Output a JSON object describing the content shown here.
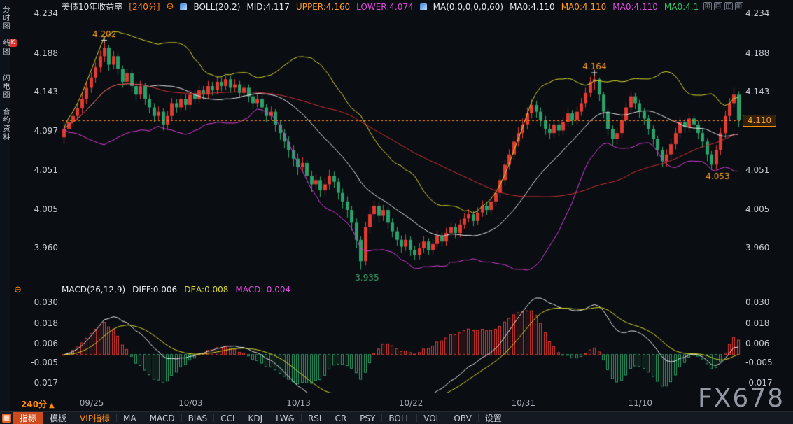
{
  "watermark": {
    "text": "FX678"
  },
  "header": {
    "symbol": "美债10年收益率",
    "period_tag": "[240分]",
    "collapse_glyph": "⊖",
    "boll_label": "BOLL(20,2)",
    "boll_mid": "MID:4.117",
    "boll_upper": "UPPER:4.160",
    "boll_lower": "LOWER:4.074",
    "ma_label": "MA(0,0,0,0,0,60)",
    "ma_values": [
      "MA0:4.110",
      "MA0:4.110",
      "MA0:4.110",
      "MA0:4.1"
    ],
    "layout_icons": [
      {
        "name": "layout-single-icon",
        "glyph": "⊞"
      },
      {
        "name": "layout-split-horizontal-icon",
        "glyph": "⊟"
      },
      {
        "name": "layout-split-vertical-icon",
        "glyph": "◫"
      },
      {
        "name": "layout-quad-icon",
        "glyph": "⊞"
      }
    ]
  },
  "sidebar": {
    "tabs": [
      {
        "label": "分时图",
        "active": false
      },
      {
        "badge": "K",
        "label": "线图",
        "active": true
      },
      {
        "label": "闪电图",
        "active": false
      },
      {
        "label": "合约资料",
        "active": false
      }
    ]
  },
  "macd_header": {
    "collapse_glyph": "⊖",
    "label": "MACD(26,12,9)",
    "diff": "DIFF:0.006",
    "dea": "DEA:0.008",
    "macd": "MACD:-0.004"
  },
  "xaxis": {
    "period_label": "240分",
    "arrow": "▲"
  },
  "toolbar": {
    "grid_icon_glyph": "▦",
    "items": [
      {
        "id": "indicators",
        "label": "指标",
        "style": "active"
      },
      {
        "id": "templates",
        "label": "模板"
      },
      {
        "id": "vip-indicators",
        "label": "VIP指标",
        "style": "vip"
      },
      {
        "id": "ma",
        "label": "MA"
      },
      {
        "id": "macd",
        "label": "MACD"
      },
      {
        "id": "bias",
        "label": "BIAS"
      },
      {
        "id": "cci",
        "label": "CCI"
      },
      {
        "id": "kdj",
        "label": "KDJ"
      },
      {
        "id": "lwr",
        "label": "LW&"
      },
      {
        "id": "rsi",
        "label": "RSI"
      },
      {
        "id": "cr",
        "label": "CR"
      },
      {
        "id": "psy",
        "label": "PSY"
      },
      {
        "id": "boll",
        "label": "BOLL"
      },
      {
        "id": "vol",
        "label": "VOL"
      },
      {
        "id": "obv",
        "label": "OBV"
      },
      {
        "id": "settings",
        "label": "设置"
      }
    ]
  },
  "colors": {
    "up": "#e23b30",
    "down": "#2aa06a",
    "boll_upper": "#d9d929",
    "boll_mid": "#e9e9e9",
    "boll_lower": "#dd3fdd",
    "ma60": "#cf3232",
    "accent": "#ff8a00",
    "dea": "#d9d929",
    "diff": "#e9e9e9"
  },
  "chart_data": {
    "type": "candlestick",
    "title": "美债10年收益率 240分 K线 + BOLL(20,2) + MA60 + MACD(26,12,9)",
    "price_axis": {
      "top": 4.236,
      "bottom": 3.9215,
      "ticks": [
        4.234,
        4.188,
        4.143,
        4.097,
        4.051,
        4.005,
        3.96
      ],
      "right_ticks": [
        4.234,
        4.188,
        4.143,
        4.051,
        4.005,
        3.96
      ]
    },
    "macd_axis": {
      "top": 0.0345,
      "bottom": -0.0225,
      "ticks": [
        0.03,
        0.018,
        0.006,
        -0.005,
        -0.017
      ]
    },
    "current_price": 4.11,
    "current_price_label": "4.110",
    "overlays": {
      "boll": {
        "period": 20,
        "dev": 2
      },
      "ma_period": 60
    },
    "macd_params": {
      "fast": 12,
      "slow": 26,
      "signal": 9
    },
    "x_labels": [
      {
        "text": "09/25",
        "i": 6
      },
      {
        "text": "10/03",
        "i": 28
      },
      {
        "text": "10/13",
        "i": 52
      },
      {
        "text": "10/22",
        "i": 77
      },
      {
        "text": "10/31",
        "i": 102
      },
      {
        "text": "11/10",
        "i": 128
      }
    ],
    "annotations": [
      {
        "i": 9,
        "text": "4.202",
        "color": "#ffa21e",
        "pos": "above",
        "cross": true
      },
      {
        "i": 66,
        "text": "3.935",
        "color": "#3fae6e",
        "pos": "below",
        "cross": false
      },
      {
        "i": 118,
        "text": "4.164",
        "color": "#ffa21e",
        "pos": "above",
        "cross": true
      },
      {
        "i": 144,
        "text": "4.053",
        "color": "#ffa21e",
        "pos": "below",
        "cross": false
      }
    ],
    "candles": [
      [
        4.09,
        4.108,
        4.082,
        4.1
      ],
      [
        4.1,
        4.113,
        4.094,
        4.108
      ],
      [
        4.108,
        4.121,
        4.103,
        4.115
      ],
      [
        4.115,
        4.13,
        4.11,
        4.124
      ],
      [
        4.124,
        4.142,
        4.118,
        4.135
      ],
      [
        4.135,
        4.154,
        4.129,
        4.148
      ],
      [
        4.148,
        4.166,
        4.142,
        4.16
      ],
      [
        4.16,
        4.178,
        4.154,
        4.172
      ],
      [
        4.172,
        4.192,
        4.166,
        4.185
      ],
      [
        4.185,
        4.202,
        4.178,
        4.195
      ],
      [
        4.195,
        4.198,
        4.168,
        4.175
      ],
      [
        4.175,
        4.191,
        4.17,
        4.185
      ],
      [
        4.185,
        4.189,
        4.163,
        4.17
      ],
      [
        4.17,
        4.174,
        4.148,
        4.155
      ],
      [
        4.155,
        4.171,
        4.15,
        4.165
      ],
      [
        4.165,
        4.169,
        4.143,
        4.15
      ],
      [
        4.15,
        4.155,
        4.133,
        4.14
      ],
      [
        4.14,
        4.156,
        4.135,
        4.15
      ],
      [
        4.15,
        4.154,
        4.128,
        4.135
      ],
      [
        4.135,
        4.14,
        4.118,
        4.125
      ],
      [
        4.125,
        4.13,
        4.108,
        4.115
      ],
      [
        4.115,
        4.126,
        4.11,
        4.12
      ],
      [
        4.12,
        4.124,
        4.098,
        4.105
      ],
      [
        4.105,
        4.121,
        4.1,
        4.115
      ],
      [
        4.115,
        4.136,
        4.11,
        4.13
      ],
      [
        4.13,
        4.135,
        4.119,
        4.125
      ],
      [
        4.125,
        4.141,
        4.12,
        4.135
      ],
      [
        4.135,
        4.14,
        4.122,
        4.128
      ],
      [
        4.128,
        4.146,
        4.123,
        4.14
      ],
      [
        4.14,
        4.145,
        4.129,
        4.135
      ],
      [
        4.135,
        4.151,
        4.13,
        4.145
      ],
      [
        4.145,
        4.15,
        4.134,
        4.14
      ],
      [
        4.14,
        4.156,
        4.135,
        4.15
      ],
      [
        4.15,
        4.155,
        4.139,
        4.145
      ],
      [
        4.145,
        4.161,
        4.14,
        4.155
      ],
      [
        4.155,
        4.16,
        4.144,
        4.15
      ],
      [
        4.15,
        4.162,
        4.145,
        4.158
      ],
      [
        4.158,
        4.162,
        4.142,
        4.148
      ],
      [
        4.148,
        4.158,
        4.143,
        4.152
      ],
      [
        4.152,
        4.156,
        4.136,
        4.142
      ],
      [
        4.142,
        4.153,
        4.137,
        4.148
      ],
      [
        4.148,
        4.152,
        4.131,
        4.138
      ],
      [
        4.138,
        4.142,
        4.123,
        4.13
      ],
      [
        4.13,
        4.141,
        4.125,
        4.135
      ],
      [
        4.135,
        4.139,
        4.118,
        4.125
      ],
      [
        4.125,
        4.129,
        4.108,
        4.115
      ],
      [
        4.115,
        4.126,
        4.11,
        4.12
      ],
      [
        4.12,
        4.123,
        4.097,
        4.105
      ],
      [
        4.105,
        4.11,
        4.087,
        4.095
      ],
      [
        4.095,
        4.1,
        4.077,
        4.085
      ],
      [
        4.085,
        4.091,
        4.066,
        4.075
      ],
      [
        4.075,
        4.081,
        4.056,
        4.065
      ],
      [
        4.065,
        4.071,
        4.046,
        4.055
      ],
      [
        4.055,
        4.067,
        4.049,
        4.06
      ],
      [
        4.06,
        4.064,
        4.037,
        4.045
      ],
      [
        4.045,
        4.051,
        4.026,
        4.035
      ],
      [
        4.035,
        4.047,
        4.029,
        4.04
      ],
      [
        4.04,
        4.044,
        4.02,
        4.028
      ],
      [
        4.028,
        4.042,
        4.022,
        4.035
      ],
      [
        4.035,
        4.052,
        4.029,
        4.045
      ],
      [
        4.045,
        4.05,
        4.031,
        4.038
      ],
      [
        4.038,
        4.042,
        4.017,
        4.025
      ],
      [
        4.025,
        4.03,
        4.007,
        4.015
      ],
      [
        4.015,
        4.021,
        3.996,
        4.005
      ],
      [
        4.005,
        4.01,
        3.981,
        3.99
      ],
      [
        3.99,
        3.995,
        3.96,
        3.97
      ],
      [
        3.97,
        3.974,
        3.935,
        3.945
      ],
      [
        3.945,
        3.991,
        3.94,
        3.985
      ],
      [
        3.985,
        4.007,
        3.978,
        4.0
      ],
      [
        4.0,
        4.016,
        3.994,
        4.01
      ],
      [
        4.01,
        4.014,
        3.991,
        3.998
      ],
      [
        3.998,
        4.011,
        3.992,
        4.005
      ],
      [
        4.005,
        4.009,
        3.983,
        3.99
      ],
      [
        3.99,
        3.995,
        3.973,
        3.98
      ],
      [
        3.98,
        3.985,
        3.963,
        3.97
      ],
      [
        3.97,
        3.975,
        3.955,
        3.962
      ],
      [
        3.962,
        3.976,
        3.957,
        3.97
      ],
      [
        3.97,
        3.974,
        3.951,
        3.958
      ],
      [
        3.958,
        3.963,
        3.946,
        3.952
      ],
      [
        3.952,
        3.966,
        3.947,
        3.96
      ],
      [
        3.96,
        3.974,
        3.955,
        3.968
      ],
      [
        3.968,
        3.972,
        3.952,
        3.958
      ],
      [
        3.958,
        3.971,
        3.953,
        3.965
      ],
      [
        3.965,
        3.981,
        3.96,
        3.975
      ],
      [
        3.975,
        3.979,
        3.962,
        3.968
      ],
      [
        3.968,
        3.984,
        3.963,
        3.978
      ],
      [
        3.978,
        3.991,
        3.973,
        3.985
      ],
      [
        3.985,
        3.989,
        3.972,
        3.978
      ],
      [
        3.978,
        3.994,
        3.973,
        3.988
      ],
      [
        3.988,
        4.001,
        3.983,
        3.995
      ],
      [
        3.995,
        4.006,
        3.99,
        4.0
      ],
      [
        4.0,
        4.004,
        3.986,
        3.992
      ],
      [
        3.992,
        4.008,
        3.987,
        4.002
      ],
      [
        4.002,
        4.016,
        3.997,
        4.01
      ],
      [
        4.01,
        4.015,
        3.999,
        4.005
      ],
      [
        4.005,
        4.021,
        4.0,
        4.015
      ],
      [
        4.015,
        4.031,
        4.01,
        4.025
      ],
      [
        4.025,
        4.046,
        4.019,
        4.04
      ],
      [
        4.04,
        4.064,
        4.034,
        4.058
      ],
      [
        4.058,
        4.076,
        4.052,
        4.07
      ],
      [
        4.07,
        4.091,
        4.064,
        4.085
      ],
      [
        4.085,
        4.102,
        4.079,
        4.095
      ],
      [
        4.095,
        4.112,
        4.089,
        4.105
      ],
      [
        4.105,
        4.125,
        4.099,
        4.118
      ],
      [
        4.118,
        4.135,
        4.112,
        4.128
      ],
      [
        4.128,
        4.133,
        4.113,
        4.12
      ],
      [
        4.12,
        4.125,
        4.103,
        4.11
      ],
      [
        4.11,
        4.115,
        4.093,
        4.1
      ],
      [
        4.1,
        4.106,
        4.088,
        4.095
      ],
      [
        4.095,
        4.111,
        4.09,
        4.105
      ],
      [
        4.105,
        4.109,
        4.091,
        4.098
      ],
      [
        4.098,
        4.114,
        4.093,
        4.108
      ],
      [
        4.108,
        4.124,
        4.103,
        4.118
      ],
      [
        4.118,
        4.122,
        4.104,
        4.11
      ],
      [
        4.11,
        4.126,
        4.105,
        4.12
      ],
      [
        4.12,
        4.136,
        4.115,
        4.13
      ],
      [
        4.13,
        4.148,
        4.125,
        4.142
      ],
      [
        4.142,
        4.161,
        4.137,
        4.155
      ],
      [
        4.155,
        4.164,
        4.145,
        4.158
      ],
      [
        4.158,
        4.16,
        4.132,
        4.14
      ],
      [
        4.14,
        4.143,
        4.112,
        4.12
      ],
      [
        4.12,
        4.124,
        4.092,
        4.1
      ],
      [
        4.1,
        4.104,
        4.08,
        4.088
      ],
      [
        4.088,
        4.101,
        4.082,
        4.095
      ],
      [
        4.095,
        4.116,
        4.089,
        4.11
      ],
      [
        4.11,
        4.131,
        4.104,
        4.125
      ],
      [
        4.125,
        4.144,
        4.119,
        4.138
      ],
      [
        4.138,
        4.142,
        4.123,
        4.13
      ],
      [
        4.13,
        4.134,
        4.113,
        4.12
      ],
      [
        4.12,
        4.124,
        4.105,
        4.112
      ],
      [
        4.112,
        4.116,
        4.093,
        4.1
      ],
      [
        4.1,
        4.104,
        4.081,
        4.088
      ],
      [
        4.088,
        4.092,
        4.068,
        4.075
      ],
      [
        4.075,
        4.079,
        4.055,
        4.062
      ],
      [
        4.062,
        4.076,
        4.056,
        4.07
      ],
      [
        4.07,
        4.088,
        4.064,
        4.082
      ],
      [
        4.082,
        4.101,
        4.076,
        4.095
      ],
      [
        4.095,
        4.114,
        4.089,
        4.108
      ],
      [
        4.108,
        4.112,
        4.095,
        4.102
      ],
      [
        4.102,
        4.118,
        4.096,
        4.112
      ],
      [
        4.112,
        4.116,
        4.098,
        4.105
      ],
      [
        4.105,
        4.109,
        4.088,
        4.095
      ],
      [
        4.095,
        4.1,
        4.078,
        4.085
      ],
      [
        4.085,
        4.089,
        4.062,
        4.07
      ],
      [
        4.07,
        4.074,
        4.053,
        4.058
      ],
      [
        4.058,
        4.081,
        4.052,
        4.075
      ],
      [
        4.075,
        4.101,
        4.069,
        4.095
      ],
      [
        4.095,
        4.121,
        4.089,
        4.115
      ],
      [
        4.115,
        4.136,
        4.109,
        4.13
      ],
      [
        4.13,
        4.148,
        4.124,
        4.14
      ],
      [
        4.14,
        4.144,
        4.102,
        4.11
      ]
    ]
  }
}
